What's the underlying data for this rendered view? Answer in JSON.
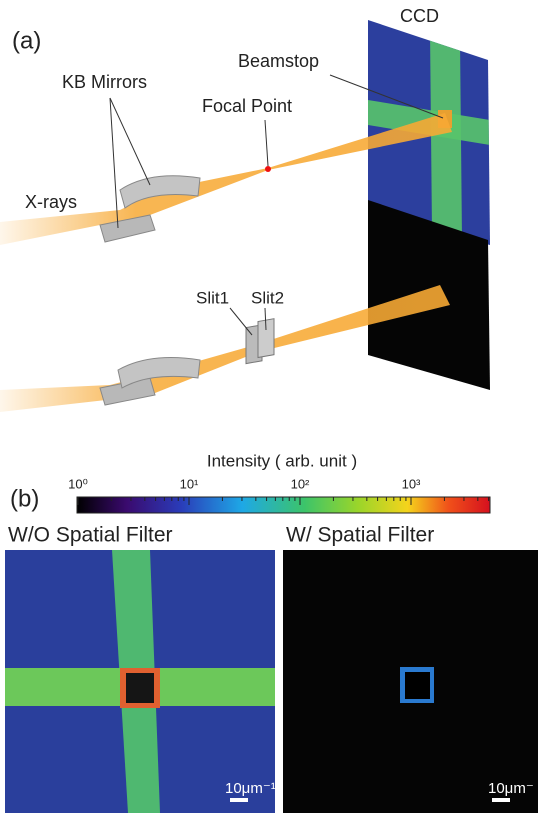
{
  "panel_a": {
    "label": "(a)",
    "ccd": "CCD",
    "beamstop": "Beamstop",
    "focal_point": "Focal Point",
    "kb_mirrors": "KB Mirrors",
    "xrays": "X-rays",
    "slit1": "Slit1",
    "slit2": "Slit2"
  },
  "panel_b": {
    "label": "(b)",
    "colorbar": {
      "title": "Intensity ( arb. unit )",
      "ticks": [
        "10⁰",
        "10¹",
        "10²",
        "10³"
      ]
    },
    "left_image": {
      "title": "W/O Spatial Filter",
      "scale_bar": "10μm⁻¹"
    },
    "right_image": {
      "title": "W/ Spatial Filter",
      "scale_bar": "10μm⁻"
    }
  }
}
